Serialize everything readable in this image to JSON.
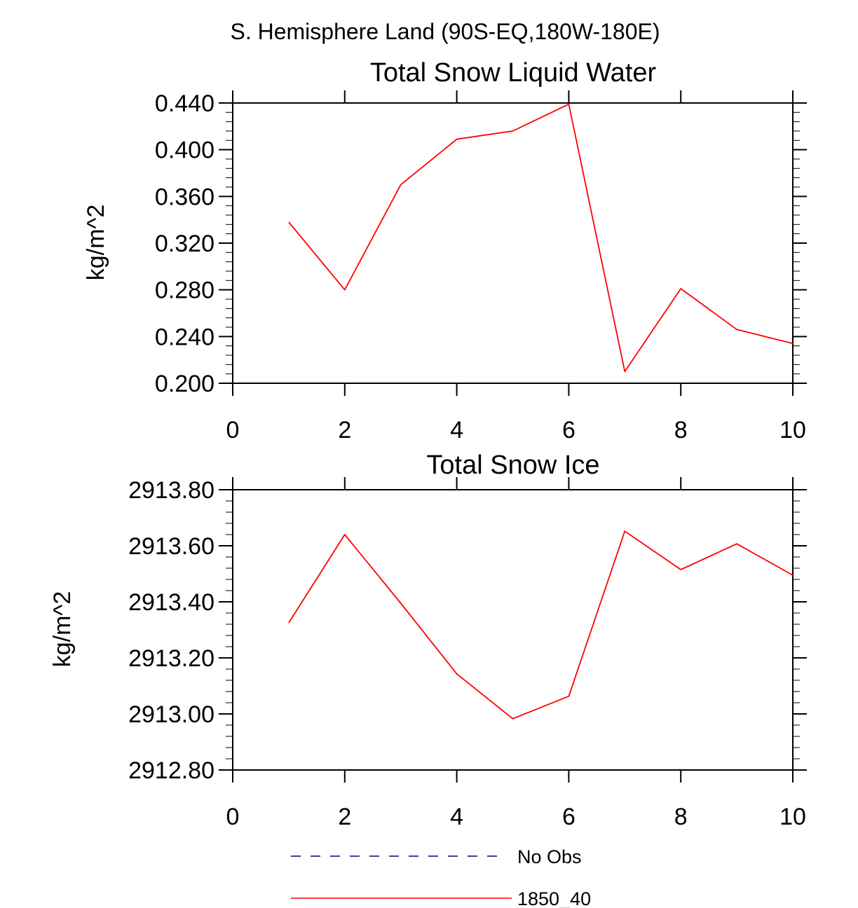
{
  "figure_title": "S. Hemisphere Land (90S-EQ,180W-180E)",
  "legend": {
    "entries": [
      {
        "label": "No Obs",
        "color": "#000080",
        "style": "dashed"
      },
      {
        "label": "1850_40",
        "color": "#ff0000",
        "style": "solid"
      }
    ]
  },
  "chart_data": [
    {
      "type": "line",
      "title": "Total Snow Liquid Water",
      "xlabel": "",
      "ylabel": "kg/m^2",
      "xlim": [
        0,
        10
      ],
      "ylim": [
        0.2,
        0.44
      ],
      "x_ticks": [
        "0",
        "2",
        "4",
        "6",
        "8",
        "10"
      ],
      "y_ticks": [
        "0.200",
        "0.240",
        "0.280",
        "0.320",
        "0.360",
        "0.400",
        "0.440"
      ],
      "series": [
        {
          "name": "1850_40",
          "color": "#ff0000",
          "x": [
            1,
            2,
            3,
            4,
            5,
            6,
            7,
            8,
            9,
            10
          ],
          "values": [
            0.338,
            0.28,
            0.37,
            0.409,
            0.416,
            0.439,
            0.21,
            0.281,
            0.246,
            0.234
          ]
        }
      ]
    },
    {
      "type": "line",
      "title": "Total Snow Ice",
      "xlabel": "",
      "ylabel": "kg/m^2",
      "xlim": [
        0,
        10
      ],
      "ylim": [
        2912.8,
        2913.8
      ],
      "x_ticks": [
        "0",
        "2",
        "4",
        "6",
        "8",
        "10"
      ],
      "y_ticks": [
        "2912.80",
        "2913.00",
        "2913.20",
        "2913.40",
        "2913.60",
        "2913.80"
      ],
      "series": [
        {
          "name": "1850_40",
          "color": "#ff0000",
          "x": [
            1,
            2,
            3,
            4,
            5,
            6,
            7,
            8,
            9,
            10
          ],
          "values": [
            2913.325,
            2913.64,
            2913.395,
            2913.143,
            2912.983,
            2913.063,
            2913.652,
            2913.515,
            2913.607,
            2913.495
          ]
        }
      ]
    }
  ]
}
